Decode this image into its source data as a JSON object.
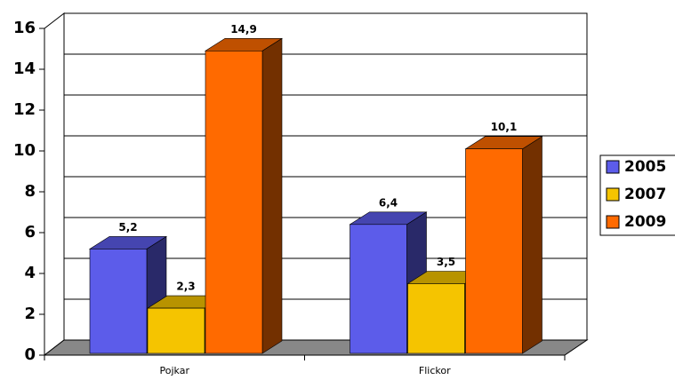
{
  "chart_data": {
    "type": "bar3d",
    "categories": [
      "Pojkar",
      "Flickor"
    ],
    "series": [
      {
        "name": "2005",
        "color": "#5c5cea",
        "values": [
          5.2,
          6.4
        ],
        "value_labels": [
          "5,2",
          "6,4"
        ]
      },
      {
        "name": "2007",
        "color": "#f5c400",
        "values": [
          2.3,
          3.5
        ],
        "value_labels": [
          "2,3",
          "3,5"
        ]
      },
      {
        "name": "2009",
        "color": "#ff6a00",
        "values": [
          14.9,
          10.1
        ],
        "value_labels": [
          "14,9",
          "10,1"
        ]
      }
    ],
    "ylim": [
      0,
      16
    ],
    "yticks": [
      0,
      2,
      4,
      6,
      8,
      10,
      12,
      14,
      16
    ],
    "grid": true,
    "legend": "right"
  }
}
